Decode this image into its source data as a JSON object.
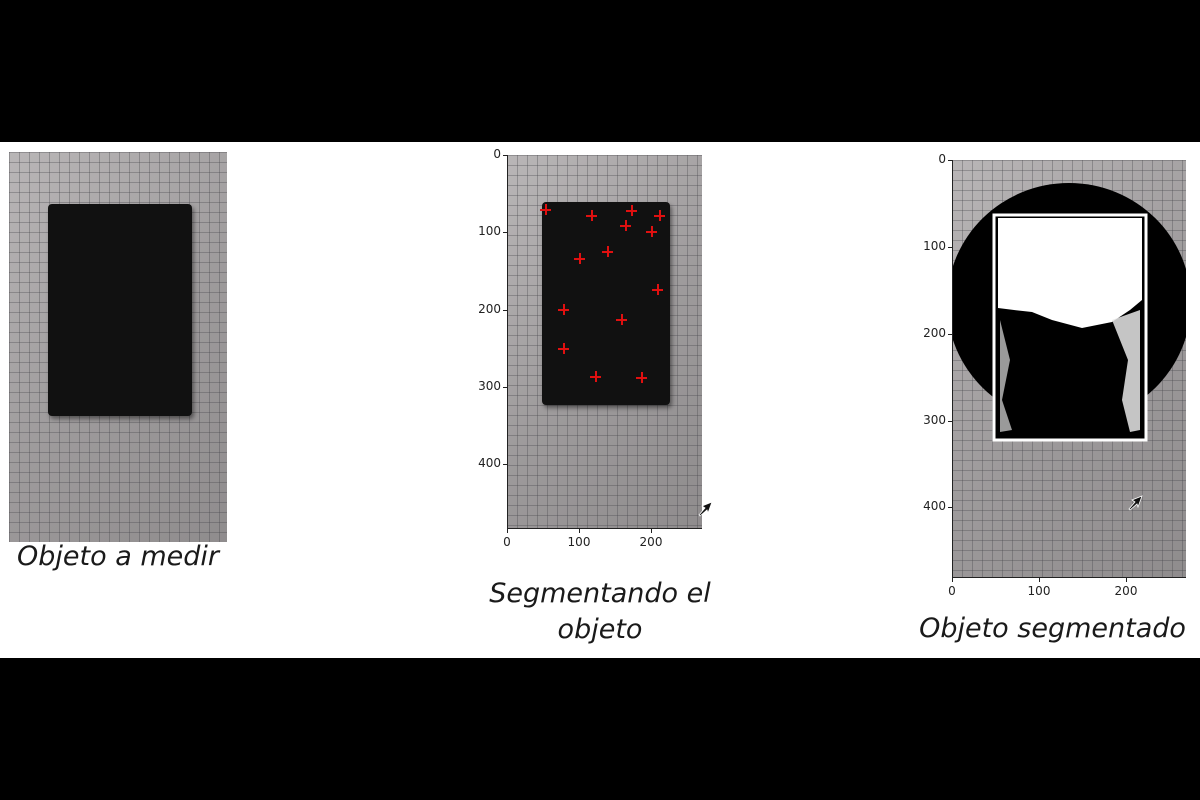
{
  "panels": [
    {
      "caption": "Objeto a medir"
    },
    {
      "caption": "Segmentando el objeto",
      "y_ticks": [
        "0",
        "100",
        "200",
        "300",
        "400"
      ],
      "x_ticks": [
        "0",
        "100",
        "200"
      ]
    },
    {
      "caption": "Objeto segmentado",
      "y_ticks": [
        "0",
        "100",
        "200",
        "300",
        "400"
      ],
      "x_ticks": [
        "0",
        "100",
        "200"
      ]
    }
  ],
  "colors": {
    "marker": "#e01010",
    "object": "#111111",
    "background": "#ffffff",
    "letterbox": "#000000"
  },
  "icons": [
    "cursor-arrow-icon",
    "cross-marker-icon"
  ]
}
